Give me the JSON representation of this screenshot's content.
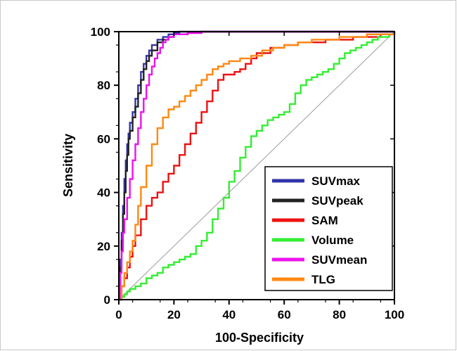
{
  "chart_data": {
    "type": "line",
    "xlabel": "100-Specificity",
    "ylabel": "Sensitivity",
    "xlim": [
      0,
      100
    ],
    "ylim": [
      0,
      100
    ],
    "x_ticks": [
      "0",
      "20",
      "40",
      "60",
      "80",
      "100"
    ],
    "y_ticks": [
      "0",
      "20",
      "40",
      "60",
      "80",
      "100"
    ],
    "grid": false,
    "legend_position": "bottom-right",
    "reference_line": "diagonal",
    "series": [
      {
        "name": "SUVmax",
        "color": "#3333aa",
        "x": [
          0,
          0.5,
          1,
          1.5,
          2,
          2.5,
          3,
          3.5,
          4,
          5,
          6,
          7,
          8,
          9,
          10,
          11,
          12,
          14,
          16,
          18,
          20,
          22,
          25,
          30,
          40,
          50,
          60,
          70,
          80,
          90,
          100
        ],
        "y": [
          0,
          15,
          25,
          35,
          45,
          52,
          58,
          62,
          66,
          70,
          75,
          80,
          85,
          88,
          91,
          93,
          95,
          97,
          98,
          99,
          99.5,
          100,
          100,
          100,
          100,
          100,
          100,
          100,
          100,
          100,
          100
        ]
      },
      {
        "name": "SUVpeak",
        "color": "#222222",
        "x": [
          0,
          0.5,
          1,
          1.5,
          2,
          2.5,
          3,
          3.5,
          4,
          5,
          6,
          7,
          8,
          9,
          10,
          11,
          12,
          14,
          16,
          18,
          20,
          25,
          30,
          40,
          50,
          60,
          70,
          80,
          90,
          100
        ],
        "y": [
          0,
          12,
          22,
          32,
          40,
          48,
          54,
          60,
          63,
          68,
          72,
          77,
          82,
          86,
          89,
          91,
          93,
          96,
          97,
          98,
          99,
          99.5,
          100,
          100,
          100,
          100,
          100,
          100,
          100,
          100
        ]
      },
      {
        "name": "SAM",
        "color": "#ee1111",
        "x": [
          0,
          1,
          2,
          3,
          4,
          5,
          6,
          8,
          10,
          12,
          14,
          16,
          18,
          20,
          22,
          24,
          26,
          28,
          30,
          32,
          34,
          36,
          38,
          40,
          42,
          44,
          46,
          48,
          50,
          55,
          60,
          65,
          70,
          75,
          80,
          85,
          90,
          95,
          100
        ],
        "y": [
          0,
          5,
          8,
          12,
          16,
          20,
          24,
          30,
          35,
          38,
          40,
          44,
          47,
          50,
          54,
          58,
          62,
          66,
          70,
          74,
          78,
          82,
          84,
          84,
          85,
          86,
          88,
          90,
          92,
          94,
          95,
          96,
          96,
          97,
          97,
          98,
          98,
          99,
          100
        ]
      },
      {
        "name": "Volume",
        "color": "#33ee33",
        "x": [
          0,
          1,
          2,
          3,
          4,
          6,
          8,
          10,
          12,
          14,
          16,
          18,
          20,
          22,
          24,
          26,
          28,
          30,
          32,
          34,
          36,
          38,
          40,
          42,
          44,
          46,
          48,
          50,
          52,
          54,
          56,
          58,
          60,
          62,
          64,
          66,
          68,
          70,
          72,
          74,
          76,
          78,
          80,
          82,
          84,
          86,
          88,
          90,
          92,
          94,
          96,
          98,
          100
        ],
        "y": [
          0,
          1,
          2,
          3,
          4,
          5,
          6,
          8,
          9,
          10,
          12,
          13,
          14,
          15,
          16,
          17,
          20,
          22,
          25,
          30,
          34,
          38,
          44,
          48,
          53,
          57,
          61,
          63,
          65,
          67,
          68,
          69,
          70,
          73,
          77,
          80,
          82,
          83,
          84,
          85,
          86,
          88,
          90,
          92,
          93,
          94,
          95,
          96,
          97,
          98,
          98,
          99,
          100
        ]
      },
      {
        "name": "SUVmean",
        "color": "#ee11ee",
        "x": [
          0,
          0.5,
          1,
          1.5,
          2,
          3,
          4,
          5,
          6,
          7,
          8,
          9,
          10,
          11,
          12,
          13,
          14,
          15,
          16,
          17,
          18,
          20,
          25,
          30,
          40,
          50,
          60,
          70,
          80,
          90,
          100
        ],
        "y": [
          0,
          10,
          18,
          25,
          30,
          38,
          45,
          52,
          58,
          64,
          70,
          75,
          80,
          84,
          87,
          90,
          92,
          94,
          96,
          97,
          98,
          99,
          99.5,
          100,
          100,
          100,
          100,
          100,
          100,
          100,
          100
        ]
      },
      {
        "name": "TLG",
        "color": "#ff8811",
        "x": [
          0,
          1,
          2,
          3,
          4,
          5,
          6,
          7,
          8,
          10,
          12,
          14,
          16,
          18,
          20,
          22,
          24,
          26,
          28,
          30,
          32,
          34,
          36,
          38,
          40,
          44,
          48,
          52,
          56,
          60,
          65,
          70,
          75,
          80,
          85,
          90,
          95,
          100
        ],
        "y": [
          0,
          5,
          10,
          14,
          18,
          22,
          28,
          35,
          42,
          50,
          58,
          64,
          68,
          71,
          72,
          74,
          76,
          78,
          80,
          82,
          84,
          86,
          87,
          88,
          89,
          90,
          91,
          93,
          94,
          95,
          96,
          97,
          97,
          98,
          98,
          99,
          99,
          100
        ]
      }
    ]
  }
}
